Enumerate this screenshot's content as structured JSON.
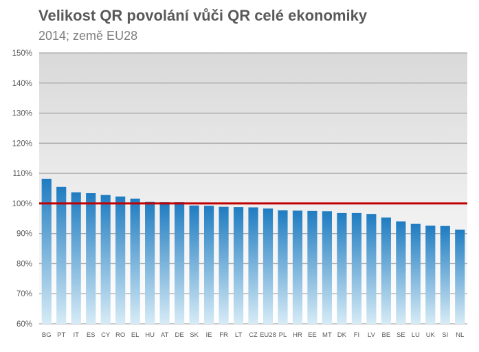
{
  "chart_data": {
    "type": "bar",
    "title": "Velikost QR povolání vůči QR celé ekonomiky",
    "subtitle": "2014; země EU28",
    "categories": [
      "BG",
      "PT",
      "IT",
      "ES",
      "CY",
      "RO",
      "EL",
      "HU",
      "AT",
      "DE",
      "SK",
      "IE",
      "FR",
      "LT",
      "CZ",
      "EU28",
      "PL",
      "HR",
      "EE",
      "MT",
      "DK",
      "FI",
      "LV",
      "BE",
      "SE",
      "LU",
      "UK",
      "SI",
      "NL"
    ],
    "values": [
      108.2,
      105.5,
      103.7,
      103.4,
      102.8,
      102.3,
      101.6,
      100.5,
      100.4,
      100.4,
      99.3,
      99.2,
      98.9,
      98.8,
      98.7,
      98.3,
      97.7,
      97.6,
      97.5,
      97.4,
      96.8,
      96.8,
      96.5,
      95.3,
      94.0,
      93.2,
      92.6,
      92.5,
      91.3
    ],
    "ylim": [
      60,
      150
    ],
    "yticks": [
      60,
      70,
      80,
      90,
      100,
      110,
      120,
      130,
      140,
      150
    ],
    "ytick_labels": [
      "60%",
      "70%",
      "80%",
      "90%",
      "100%",
      "110%",
      "120%",
      "130%",
      "140%",
      "150%"
    ],
    "reference_line": 100,
    "grid": true,
    "colors": {
      "bar_top": "#1f7cc1",
      "bar_bottom": "#d6ebf6",
      "reference_line": "#c00000",
      "plot_bg_top": "#d9d9d9",
      "plot_bg_bottom": "#ffffff",
      "gridline": "#a6a6a6",
      "tick_text": "#595959"
    }
  }
}
